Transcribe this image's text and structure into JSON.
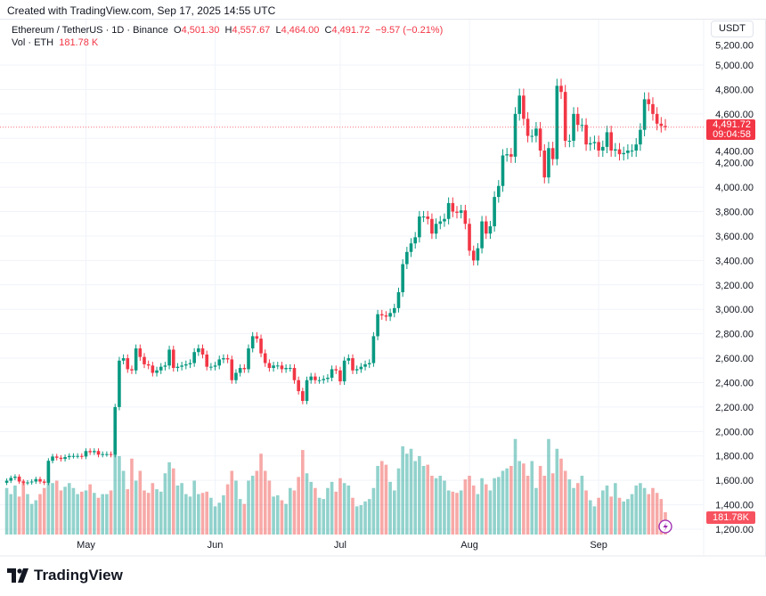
{
  "header": {
    "created": "Created with TradingView.com, Sep 17, 2025 14:55 UTC"
  },
  "legend": {
    "symbol": "Ethereum / TetherUS · 1D · Binance",
    "o_label": "O",
    "o": "4,501.30",
    "h_label": "H",
    "h": "4,557.67",
    "l_label": "L",
    "l": "4,464.00",
    "c_label": "C",
    "c": "4,491.72",
    "change": "−9.57 (−0.21%)",
    "vol_label": "Vol · ETH",
    "vol": "181.78 K"
  },
  "axis": {
    "currency": "USDT",
    "current_price": "4,491.72",
    "countdown": "09:04:58",
    "volume_tag": "181.78K"
  },
  "brand": {
    "logo_text": "TradingView"
  },
  "colors": {
    "up": "#089981",
    "down": "#f23645",
    "vol_up": "#26a69a",
    "vol_down": "#ef5350",
    "accent_icon": "#9c27b0"
  },
  "chart_data": {
    "type": "candlestick",
    "title": "Ethereum / TetherUS · 1D · Binance",
    "ylabel": "USDT",
    "ylim": [
      1150,
      5200
    ],
    "yticks": [
      "1,200.00",
      "1,400.00",
      "1,600.00",
      "1,800.00",
      "2,000.00",
      "2,200.00",
      "2,400.00",
      "2,600.00",
      "2,800.00",
      "3,000.00",
      "3,200.00",
      "3,400.00",
      "3,600.00",
      "3,800.00",
      "4,000.00",
      "4,200.00",
      "4,400.00",
      "4,600.00",
      "4,800.00",
      "5,000.00",
      "5,200.00"
    ],
    "ytick_values": [
      1200,
      1400,
      1600,
      1800,
      2000,
      2200,
      2400,
      2600,
      2800,
      3000,
      3200,
      3400,
      3600,
      3800,
      4000,
      4200,
      4400,
      4600,
      4800,
      5000,
      5200
    ],
    "xticks": [
      "May",
      "Jun",
      "Jul",
      "Aug",
      "Sep"
    ],
    "xtick_index": [
      19,
      50,
      80,
      111,
      142
    ],
    "first_open": 1580,
    "last": {
      "open": 4501.3,
      "high": 4557.67,
      "low": 4464.0,
      "close": 4491.72
    },
    "close": [
      1597,
      1620,
      1630,
      1590,
      1580,
      1583,
      1590,
      1610,
      1590,
      1580,
      1760,
      1795,
      1785,
      1775,
      1790,
      1800,
      1800,
      1800,
      1795,
      1840,
      1830,
      1840,
      1810,
      1815,
      1815,
      1810,
      2200,
      2580,
      2600,
      2510,
      2500,
      2680,
      2610,
      2550,
      2540,
      2480,
      2500,
      2530,
      2540,
      2670,
      2520,
      2530,
      2540,
      2550,
      2560,
      2650,
      2680,
      2630,
      2530,
      2530,
      2540,
      2590,
      2600,
      2590,
      2420,
      2480,
      2520,
      2510,
      2680,
      2780,
      2760,
      2640,
      2560,
      2520,
      2540,
      2540,
      2510,
      2520,
      2520,
      2420,
      2330,
      2250,
      2420,
      2450,
      2420,
      2420,
      2430,
      2440,
      2510,
      2500,
      2410,
      2580,
      2600,
      2500,
      2510,
      2530,
      2550,
      2560,
      2780,
      2960,
      2950,
      2940,
      2970,
      3010,
      3140,
      3370,
      3470,
      3540,
      3590,
      3760,
      3760,
      3740,
      3620,
      3700,
      3720,
      3740,
      3870,
      3800,
      3790,
      3810,
      3700,
      3480,
      3400,
      3500,
      3720,
      3620,
      3680,
      3920,
      4010,
      4260,
      4270,
      4250,
      4600,
      4750,
      4560,
      4420,
      4420,
      4480,
      4300,
      4080,
      4320,
      4230,
      4830,
      4780,
      4380,
      4380,
      4600,
      4510,
      4510,
      4350,
      4360,
      4370,
      4300,
      4330,
      4450,
      4300,
      4310,
      4270,
      4280,
      4300,
      4300,
      4350,
      4470,
      4720,
      4680,
      4600,
      4520,
      4501.3,
      4491.72
    ],
    "volume_k": [
      380,
      330,
      400,
      310,
      440,
      330,
      250,
      280,
      330,
      380,
      560,
      420,
      440,
      360,
      390,
      420,
      380,
      330,
      350,
      360,
      410,
      340,
      300,
      330,
      330,
      360,
      780,
      640,
      520,
      370,
      620,
      440,
      520,
      360,
      340,
      420,
      370,
      350,
      500,
      590,
      540,
      400,
      420,
      330,
      310,
      440,
      330,
      340,
      350,
      300,
      230,
      260,
      320,
      410,
      520,
      440,
      290,
      250,
      440,
      480,
      520,
      660,
      520,
      440,
      310,
      320,
      280,
      250,
      380,
      360,
      470,
      690,
      500,
      430,
      380,
      300,
      290,
      380,
      430,
      350,
      460,
      420,
      400,
      300,
      230,
      240,
      270,
      290,
      380,
      560,
      600,
      570,
      430,
      360,
      540,
      720,
      660,
      700,
      600,
      640,
      560,
      570,
      480,
      460,
      480,
      440,
      360,
      350,
      340,
      360,
      450,
      480,
      400,
      330,
      460,
      410,
      360,
      460,
      470,
      520,
      540,
      560,
      780,
      600,
      580,
      480,
      600,
      380,
      560,
      480,
      780,
      500,
      700,
      620,
      520,
      450,
      380,
      420,
      480,
      360,
      280,
      230,
      300,
      360,
      400,
      310,
      420,
      300,
      270,
      290,
      330,
      400,
      420,
      380,
      330,
      380,
      340,
      290,
      181.78
    ]
  }
}
